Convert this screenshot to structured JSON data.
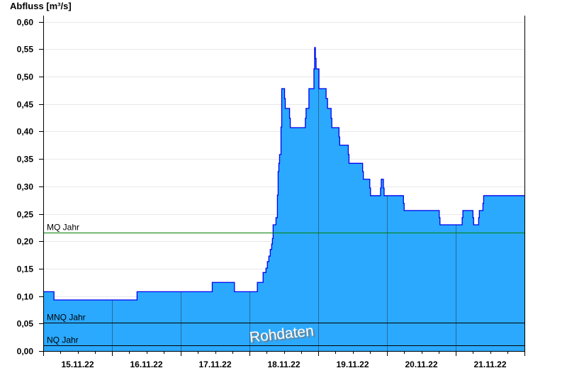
{
  "chart_data": {
    "type": "area",
    "title": "",
    "ylabel": "Abfluss [m³/s]",
    "xlabel": "",
    "ylim": [
      0,
      0.6
    ],
    "xlim": [
      "2022-11-15 00:00",
      "2022-11-22 00:00"
    ],
    "yticks": [
      "0,00",
      "0,05",
      "0,10",
      "0,15",
      "0,20",
      "0,25",
      "0,30",
      "0,35",
      "0,40",
      "0,45",
      "0,50",
      "0,55",
      "0,60"
    ],
    "xtick_labels": [
      "15.11.22",
      "16.11.22",
      "17.11.22",
      "18.11.22",
      "19.11.22",
      "20.11.22",
      "21.11.22"
    ],
    "grid": true,
    "step": true,
    "colors": {
      "fill": "#2aa9ff",
      "line": "#0000ee",
      "mq": "#008000",
      "ref": "#000000",
      "day_grid": "#2a6a9a",
      "grid": "#e8e8e8"
    },
    "series": [
      {
        "points": [
          [
            "2022-11-15 00:00",
            0.108
          ],
          [
            "2022-11-15 03:45",
            0.093
          ],
          [
            "2022-11-16 08:45",
            0.108
          ],
          [
            "2022-11-17 11:00",
            0.125
          ],
          [
            "2022-11-17 18:45",
            0.108
          ],
          [
            "2022-11-18 02:45",
            0.125
          ],
          [
            "2022-11-18 04:45",
            0.143
          ],
          [
            "2022-11-18 05:45",
            0.151
          ],
          [
            "2022-11-18 06:15",
            0.163
          ],
          [
            "2022-11-18 06:45",
            0.173
          ],
          [
            "2022-11-18 07:15",
            0.185
          ],
          [
            "2022-11-18 07:45",
            0.195
          ],
          [
            "2022-11-18 08:00",
            0.205
          ],
          [
            "2022-11-18 08:15",
            0.23
          ],
          [
            "2022-11-18 09:15",
            0.243
          ],
          [
            "2022-11-18 09:45",
            0.284
          ],
          [
            "2022-11-18 10:00",
            0.327
          ],
          [
            "2022-11-18 10:15",
            0.342
          ],
          [
            "2022-11-18 10:30",
            0.358
          ],
          [
            "2022-11-18 11:00",
            0.408
          ],
          [
            "2022-11-18 11:15",
            0.478
          ],
          [
            "2022-11-18 12:15",
            0.46
          ],
          [
            "2022-11-18 12:30",
            0.442
          ],
          [
            "2022-11-18 14:00",
            0.424
          ],
          [
            "2022-11-18 14:15",
            0.407
          ],
          [
            "2022-11-18 19:30",
            0.424
          ],
          [
            "2022-11-18 19:45",
            0.442
          ],
          [
            "2022-11-18 20:45",
            0.478
          ],
          [
            "2022-11-18 22:30",
            0.514
          ],
          [
            "2022-11-18 22:45",
            0.553
          ],
          [
            "2022-11-18 23:00",
            0.533
          ],
          [
            "2022-11-18 23:15",
            0.514
          ],
          [
            "2022-11-19 00:15",
            0.478
          ],
          [
            "2022-11-19 02:45",
            0.46
          ],
          [
            "2022-11-19 03:15",
            0.442
          ],
          [
            "2022-11-19 04:30",
            0.424
          ],
          [
            "2022-11-19 04:45",
            0.407
          ],
          [
            "2022-11-19 07:15",
            0.39
          ],
          [
            "2022-11-19 07:30",
            0.375
          ],
          [
            "2022-11-19 10:30",
            0.358
          ],
          [
            "2022-11-19 10:45",
            0.342
          ],
          [
            "2022-11-19 15:30",
            0.327
          ],
          [
            "2022-11-19 15:45",
            0.313
          ],
          [
            "2022-11-19 18:00",
            0.297
          ],
          [
            "2022-11-19 18:15",
            0.283
          ],
          [
            "2022-11-19 21:45",
            0.297
          ],
          [
            "2022-11-19 22:00",
            0.313
          ],
          [
            "2022-11-19 22:45",
            0.297
          ],
          [
            "2022-11-19 23:00",
            0.283
          ],
          [
            "2022-11-20 05:45",
            0.269
          ],
          [
            "2022-11-20 06:00",
            0.256
          ],
          [
            "2022-11-20 18:15",
            0.243
          ],
          [
            "2022-11-20 18:30",
            0.23
          ],
          [
            "2022-11-21 02:15",
            0.243
          ],
          [
            "2022-11-21 02:30",
            0.256
          ],
          [
            "2022-11-21 06:00",
            0.243
          ],
          [
            "2022-11-21 06:15",
            0.23
          ],
          [
            "2022-11-21 08:00",
            0.243
          ],
          [
            "2022-11-21 08:15",
            0.256
          ],
          [
            "2022-11-21 09:30",
            0.269
          ],
          [
            "2022-11-21 09:45",
            0.283
          ],
          [
            "2022-11-22 00:00",
            0.283
          ]
        ]
      }
    ],
    "reference_lines": [
      {
        "label": "MQ Jahr",
        "value": 0.216
      },
      {
        "label": "MNQ Jahr",
        "value": 0.052
      },
      {
        "label": "NQ Jahr",
        "value": 0.01
      }
    ],
    "watermark": "Rohdaten"
  }
}
